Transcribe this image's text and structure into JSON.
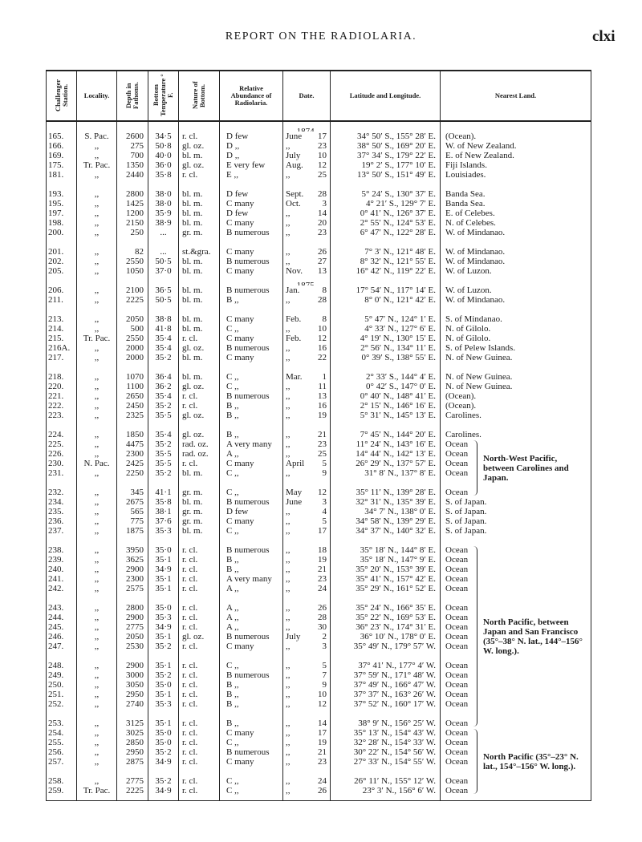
{
  "header": {
    "title": "REPORT ON THE RADIOLARIA.",
    "page": "clxi"
  },
  "columns": [
    "Challenger Station.",
    "Locality.",
    "Depth in Fathoms.",
    "Bottom Temperature ° F.",
    "Nature of Bottom.",
    "Relative Abundance of Radiolaria.",
    "Date.",
    "Latitude and Longitude.",
    "Nearest Land."
  ],
  "groups": [
    {
      "year": "1874.",
      "rows": [
        [
          "165.",
          "S. Pac.",
          "2600",
          "34·5",
          "r. cl.",
          "D few",
          "June",
          "17",
          "34° 50′ S.,  155° 28′ E.",
          "(Ocean)."
        ],
        [
          "166.",
          ",,",
          "275",
          "50·8",
          "gl. oz.",
          "D  ,,",
          ",,",
          "23",
          "38° 50′ S.,  169° 20′ E.",
          "W. of New Zealand."
        ],
        [
          "169.",
          ",,",
          "700",
          "40·0",
          "bl. m.",
          "D  ,,",
          "July",
          "10",
          "37° 34′ S.,  179° 22′ E.",
          "E. of New Zealand."
        ],
        [
          "175.",
          "Tr. Pac.",
          "1350",
          "36·0",
          "gl. oz.",
          "E very few",
          "Aug.",
          "12",
          "19°  2′ S.,  177° 10′ E.",
          "Fiji Islands."
        ],
        [
          "181.",
          ",,",
          "2440",
          "35·8",
          "r. cl.",
          "E       ,,",
          ",,",
          "25",
          "13° 50′ S.,  151° 49′ E.",
          "Louisiades."
        ]
      ]
    },
    {
      "rows": [
        [
          "193.",
          ",,",
          "2800",
          "38·0",
          "bl. m.",
          "D few",
          "Sept.",
          "28",
          "5° 24′ S.,  130° 37′ E.",
          "Banda Sea."
        ],
        [
          "195.",
          ",,",
          "1425",
          "38·0",
          "bl. m.",
          "C many",
          "Oct.",
          "3",
          "4° 21′ S.,  129°  7′ E.",
          "Banda Sea."
        ],
        [
          "197.",
          ",,",
          "1200",
          "35·9",
          "bl. m.",
          "D few",
          ",,",
          "14",
          "0° 41′ N.,  126° 37′ E.",
          "E. of Celebes."
        ],
        [
          "198.",
          ",,",
          "2150",
          "38·9",
          "bl. m.",
          "C many",
          ",,",
          "20",
          "2° 55′ N.,  124° 53′ E.",
          "N. of Celebes."
        ],
        [
          "200.",
          ",,",
          "250",
          "...",
          "gr. m.",
          "B numerous",
          ",,",
          "23",
          "6° 47′ N.,  122° 28′ E.",
          "W. of Mindanao."
        ]
      ]
    },
    {
      "rows": [
        [
          "201.",
          ",,",
          "82",
          "...",
          "st.&gra.",
          "C many",
          ",,",
          "26",
          "7°  3′ N.,  121° 48′ E.",
          "W. of Mindanao."
        ],
        [
          "202.",
          ",,",
          "2550",
          "50·5",
          "bl. m.",
          "B numerous",
          ",,",
          "27",
          "8° 32′ N.,  121° 55′ E.",
          "W. of Mindanao."
        ],
        [
          "205.",
          ",,",
          "1050",
          "37·0",
          "bl. m.",
          "C many",
          "Nov.",
          "13",
          "16° 42′ N.,  119° 22′ E.",
          "W. of Luzon."
        ]
      ]
    },
    {
      "year": "1875.",
      "rows": [
        [
          "206.",
          ",,",
          "2100",
          "36·5",
          "bl. m.",
          "B numerous",
          "Jan.",
          "8",
          "17° 54′ N.,  117° 14′ E.",
          "W. of Luzon."
        ],
        [
          "211.",
          ",,",
          "2225",
          "50·5",
          "bl. m.",
          "B      ,,",
          ",,",
          "28",
          "8°  0′ N.,  121° 42′ E.",
          "W. of Mindanao."
        ]
      ]
    },
    {
      "rows": [
        [
          "213.",
          ",,",
          "2050",
          "38·8",
          "bl. m.",
          "C many",
          "Feb.",
          "8",
          "5° 47′ N.,  124°  1′ E.",
          "S. of Mindanao."
        ],
        [
          "214.",
          ",,",
          "500",
          "41·8",
          "bl. m.",
          "C  ,,",
          ",,",
          "10",
          "4° 33′ N.,  127°  6′ E.",
          "N. of Gilolo."
        ],
        [
          "215.",
          "Tr. Pac.",
          "2550",
          "35·4",
          "r. cl.",
          "C many",
          "Feb.",
          "12",
          "4° 19′ N.,  130° 15′ E.",
          "N. of Gilolo."
        ],
        [
          "216A.",
          ",,",
          "2000",
          "35·4",
          "gl. oz.",
          "B numerous",
          ",,",
          "16",
          "2° 56′ N.,  134° 11′ E.",
          "S. of Pelew Islands."
        ],
        [
          "217.",
          ",,",
          "2000",
          "35·2",
          "bl. m.",
          "C many",
          ",,",
          "22",
          "0° 39′ S.,  138° 55′ E.",
          "N. of New Guinea."
        ]
      ]
    },
    {
      "rows": [
        [
          "218.",
          ",,",
          "1070",
          "36·4",
          "bl. m.",
          "C  ,,",
          "Mar.",
          "1",
          "2° 33′ S.,  144°  4′ E.",
          "N. of New Guinea."
        ],
        [
          "220.",
          ",,",
          "1100",
          "36·2",
          "gl. oz.",
          "C  ,,",
          ",,",
          "11",
          "0° 42′ S.,  147°  0′ E.",
          "N. of New Guinea."
        ],
        [
          "221.",
          ",,",
          "2650",
          "35·4",
          "r. cl.",
          "B numerous",
          ",,",
          "13",
          "0° 40′ N.,  148° 41′ E.",
          "(Ocean)."
        ],
        [
          "222.",
          ",,",
          "2450",
          "35·2",
          "r. cl.",
          "B      ,,",
          ",,",
          "16",
          "2° 15′ N.,  146° 16′ E.",
          "(Ocean)."
        ],
        [
          "223.",
          ",,",
          "2325",
          "35·5",
          "gl. oz.",
          "B      ,,",
          ",,",
          "19",
          "5° 31′ N.,  145° 13′ E.",
          "Carolines."
        ]
      ]
    },
    {
      "rows": [
        [
          "224.",
          ",,",
          "1850",
          "35·4",
          "gl. oz.",
          "B      ,,",
          ",,",
          "21",
          "7° 45′ N.,  144° 20′ E.",
          "Carolines."
        ],
        [
          "225.",
          ",,",
          "4475",
          "35·2",
          "rad. oz.",
          "A very many",
          ",,",
          "23",
          "11° 24′ N.,  143° 16′ E.",
          "Ocean"
        ],
        [
          "226.",
          ",,",
          "2300",
          "35·5",
          "rad. oz.",
          "A      ,,",
          ",,",
          "25",
          "14° 44′ N.,  142° 13′ E.",
          "Ocean"
        ],
        [
          "230.",
          "N. Pac.",
          "2425",
          "35·5",
          "r. cl.",
          "C many",
          "April",
          "5",
          "26° 29′ N.,  137° 57′ E.",
          "Ocean"
        ],
        [
          "231.",
          ",,",
          "2250",
          "35·2",
          "bl. m.",
          "C  ,,",
          ",,",
          "9",
          "31°  8′ N.,  137°  8′ E.",
          "Ocean"
        ]
      ]
    },
    {
      "rows": [
        [
          "232.",
          ",,",
          "345",
          "41·1",
          "gr. m.",
          "C  ,,",
          "May",
          "12",
          "35° 11′ N.,  139° 28′ E.",
          "Ocean"
        ],
        [
          "234.",
          ",,",
          "2675",
          "35·8",
          "bl. m.",
          "B numerous",
          "June",
          "3",
          "32° 31′ N.,  135° 39′ E.",
          "S. of Japan."
        ],
        [
          "235.",
          ",,",
          "565",
          "38·1",
          "gr. m.",
          "D few",
          ",,",
          "4",
          "34°  7′ N.,  138°  0′ E.",
          "S. of Japan."
        ],
        [
          "236.",
          ",,",
          "775",
          "37·6",
          "gr. m.",
          "C many",
          ",,",
          "5",
          "34° 58′ N.,  139° 29′ E.",
          "S. of Japan."
        ],
        [
          "237.",
          ",,",
          "1875",
          "35·3",
          "bl. m.",
          "C  ,,",
          ",,",
          "17",
          "34° 37′ N.,  140° 32′ E.",
          "S. of Japan."
        ]
      ]
    },
    {
      "rows": [
        [
          "238.",
          ",,",
          "3950",
          "35·0",
          "r. cl.",
          "B numerous",
          ",,",
          "18",
          "35° 18′ N.,  144°  8′ E.",
          "Ocean"
        ],
        [
          "239.",
          ",,",
          "3625",
          "35·1",
          "r. cl.",
          "B      ,,",
          ",,",
          "19",
          "35° 18′ N.,  147°  9′ E.",
          "Ocean"
        ],
        [
          "240.",
          ",,",
          "2900",
          "34·9",
          "r. cl.",
          "B      ,,",
          ",,",
          "21",
          "35° 20′ N.,  153° 39′ E.",
          "Ocean"
        ],
        [
          "241.",
          ",,",
          "2300",
          "35·1",
          "r. cl.",
          "A very many",
          ",,",
          "23",
          "35° 41′ N.,  157° 42′ E.",
          "Ocean"
        ],
        [
          "242.",
          ",,",
          "2575",
          "35·1",
          "r. cl.",
          "A      ,,",
          ",,",
          "24",
          "35° 29′ N.,  161° 52′ E.",
          "Ocean"
        ]
      ]
    },
    {
      "rows": [
        [
          "243.",
          ",,",
          "2800",
          "35·0",
          "r. cl.",
          "A      ,,",
          ",,",
          "26",
          "35° 24′ N.,  166° 35′ E.",
          "Ocean"
        ],
        [
          "244.",
          ",,",
          "2900",
          "35·3",
          "r. cl.",
          "A      ,,",
          ",,",
          "28",
          "35° 22′ N.,  169° 53′ E.",
          "Ocean"
        ],
        [
          "245.",
          ",,",
          "2775",
          "34·9",
          "r. cl.",
          "A      ,,",
          ",,",
          "30",
          "36° 23′ N.,  174° 31′ E.",
          "Ocean"
        ],
        [
          "246.",
          ",,",
          "2050",
          "35·1",
          "gl. oz.",
          "B numerous",
          "July",
          "2",
          "36° 10′ N.,  178°  0′ E.",
          "Ocean"
        ],
        [
          "247.",
          ",,",
          "2530",
          "35·2",
          "r. cl.",
          "C many",
          ",,",
          "3",
          "35° 49′ N.,  179° 57′ W.",
          "Ocean"
        ]
      ]
    },
    {
      "rows": [
        [
          "248.",
          ",,",
          "2900",
          "35·1",
          "r. cl.",
          "C  ,,",
          ",,",
          "5",
          "37° 41′ N.,  177°  4′ W.",
          "Ocean"
        ],
        [
          "249.",
          ",,",
          "3000",
          "35·2",
          "r. cl.",
          "B numerous",
          ",,",
          "7",
          "37° 59′ N.,  171° 48′ W.",
          "Ocean"
        ],
        [
          "250.",
          ",,",
          "3050",
          "35·0",
          "r. cl.",
          "B      ,,",
          ",,",
          "9",
          "37° 49′ N.,  166° 47′ W.",
          "Ocean"
        ],
        [
          "251.",
          ",,",
          "2950",
          "35·1",
          "r. cl.",
          "B      ,,",
          ",,",
          "10",
          "37° 37′ N.,  163° 26′ W.",
          "Ocean"
        ],
        [
          "252.",
          ",,",
          "2740",
          "35·3",
          "r. cl.",
          "B      ,,",
          ",,",
          "12",
          "37° 52′ N.,  160° 17′ W.",
          "Ocean"
        ]
      ]
    },
    {
      "rows": [
        [
          "253.",
          ",,",
          "3125",
          "35·1",
          "r. cl.",
          "B      ,,",
          ",,",
          "14",
          "38°  9′ N.,  156° 25′ W.",
          "Ocean"
        ],
        [
          "254.",
          ",,",
          "3025",
          "35·0",
          "r. cl.",
          "C many",
          ",,",
          "17",
          "35° 13′ N.,  154° 43′ W.",
          "Ocean"
        ],
        [
          "255.",
          ",,",
          "2850",
          "35·0",
          "r. cl.",
          "C  ,,",
          ",,",
          "19",
          "32° 28′ N.,  154° 33′ W.",
          "Ocean"
        ],
        [
          "256.",
          ",,",
          "2950",
          "35·2",
          "r. cl.",
          "B numerous",
          ",,",
          "21",
          "30° 22′ N.,  154° 56′ W.",
          "Ocean"
        ],
        [
          "257.",
          ",,",
          "2875",
          "34·9",
          "r. cl.",
          "C many",
          ",,",
          "23",
          "27° 33′ N.,  154° 55′ W.",
          "Ocean"
        ]
      ]
    },
    {
      "rows": [
        [
          "258.",
          ",,",
          "2775",
          "35·2",
          "r. cl.",
          "C  ,,",
          ",,",
          "24",
          "26° 11′ N.,  155° 12′ W.",
          "Ocean"
        ],
        [
          "259.",
          "Tr. Pac.",
          "2225",
          "34·9",
          "r. cl.",
          "C  ,,",
          ",,",
          "26",
          "23°  3′ N.,  156°  6′ W.",
          "Ocean"
        ]
      ]
    }
  ],
  "brackets": [
    {
      "from": "225.",
      "to": "232.",
      "text": "North-West Pacific, between Carolines and Japan."
    },
    {
      "from": "238.",
      "to": "253.",
      "text": "North Pacific, between Japan and San Francisco (35°–38° N. lat., 144°–156° W. long.)."
    },
    {
      "from": "254.",
      "to": "259.",
      "text": "North Pacific (35°–23° N. lat., 154°–156° W. long.)."
    }
  ]
}
